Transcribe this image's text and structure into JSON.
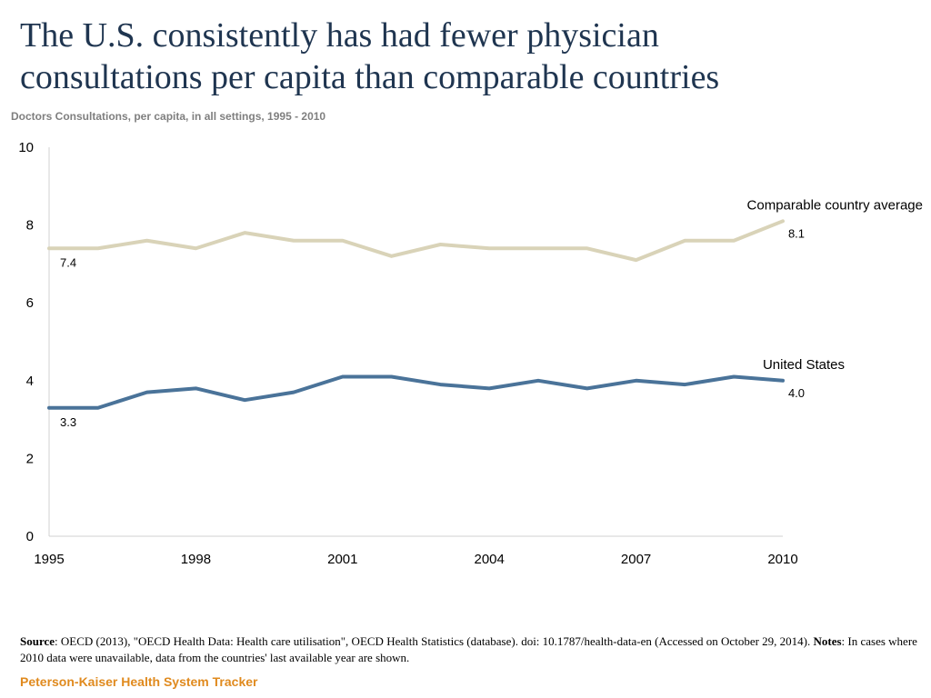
{
  "title_lines": [
    "The U.S. consistently has had fewer physician",
    "consultations per capita than comparable countries"
  ],
  "subtitle": "Doctors Consultations, per capita, in all settings, 1995 - 2010",
  "chart_data": {
    "type": "line",
    "title": "Doctors Consultations, per capita, in all settings, 1995 - 2010",
    "xlabel": "",
    "ylabel": "",
    "x": [
      1995,
      1996,
      1997,
      1998,
      1999,
      2000,
      2001,
      2002,
      2003,
      2004,
      2005,
      2006,
      2007,
      2008,
      2009,
      2010
    ],
    "x_ticks": [
      "1995",
      "1998",
      "2001",
      "2004",
      "2007",
      "2010"
    ],
    "x_tick_values": [
      1995,
      1998,
      2001,
      2004,
      2007,
      2010
    ],
    "y_ticks": [
      "0",
      "2",
      "4",
      "6",
      "8",
      "10"
    ],
    "y_tick_values": [
      0,
      2,
      4,
      6,
      8,
      10
    ],
    "xlim": [
      1995,
      2010
    ],
    "ylim": [
      0,
      10
    ],
    "grid": false,
    "series": [
      {
        "name": "Comparable country average",
        "color": "#d9d3b8",
        "values": [
          7.4,
          7.4,
          7.6,
          7.4,
          7.8,
          7.6,
          7.6,
          7.2,
          7.5,
          7.4,
          7.4,
          7.4,
          7.1,
          7.6,
          7.6,
          8.1
        ],
        "start_label": "7.4",
        "end_label": "8.1"
      },
      {
        "name": "United States",
        "color": "#4a7399",
        "values": [
          3.3,
          3.3,
          3.7,
          3.8,
          3.5,
          3.7,
          4.1,
          4.1,
          3.9,
          3.8,
          4.0,
          3.8,
          4.0,
          3.9,
          4.1,
          4.0
        ],
        "start_label": "3.3",
        "end_label": "4.0"
      }
    ]
  },
  "footer": {
    "source_label": "Source",
    "source_text": ": OECD (2013), \"OECD Health Data: Health care utilisation\", OECD Health Statistics (database).  doi: 10.1787/health-data-en (Accessed on October 29, 2014). ",
    "notes_label": "Notes",
    "notes_text": ": In cases where 2010 data were unavailable, data from the countries' last available year are shown."
  },
  "brand": "Peterson-Kaiser Health System Tracker"
}
